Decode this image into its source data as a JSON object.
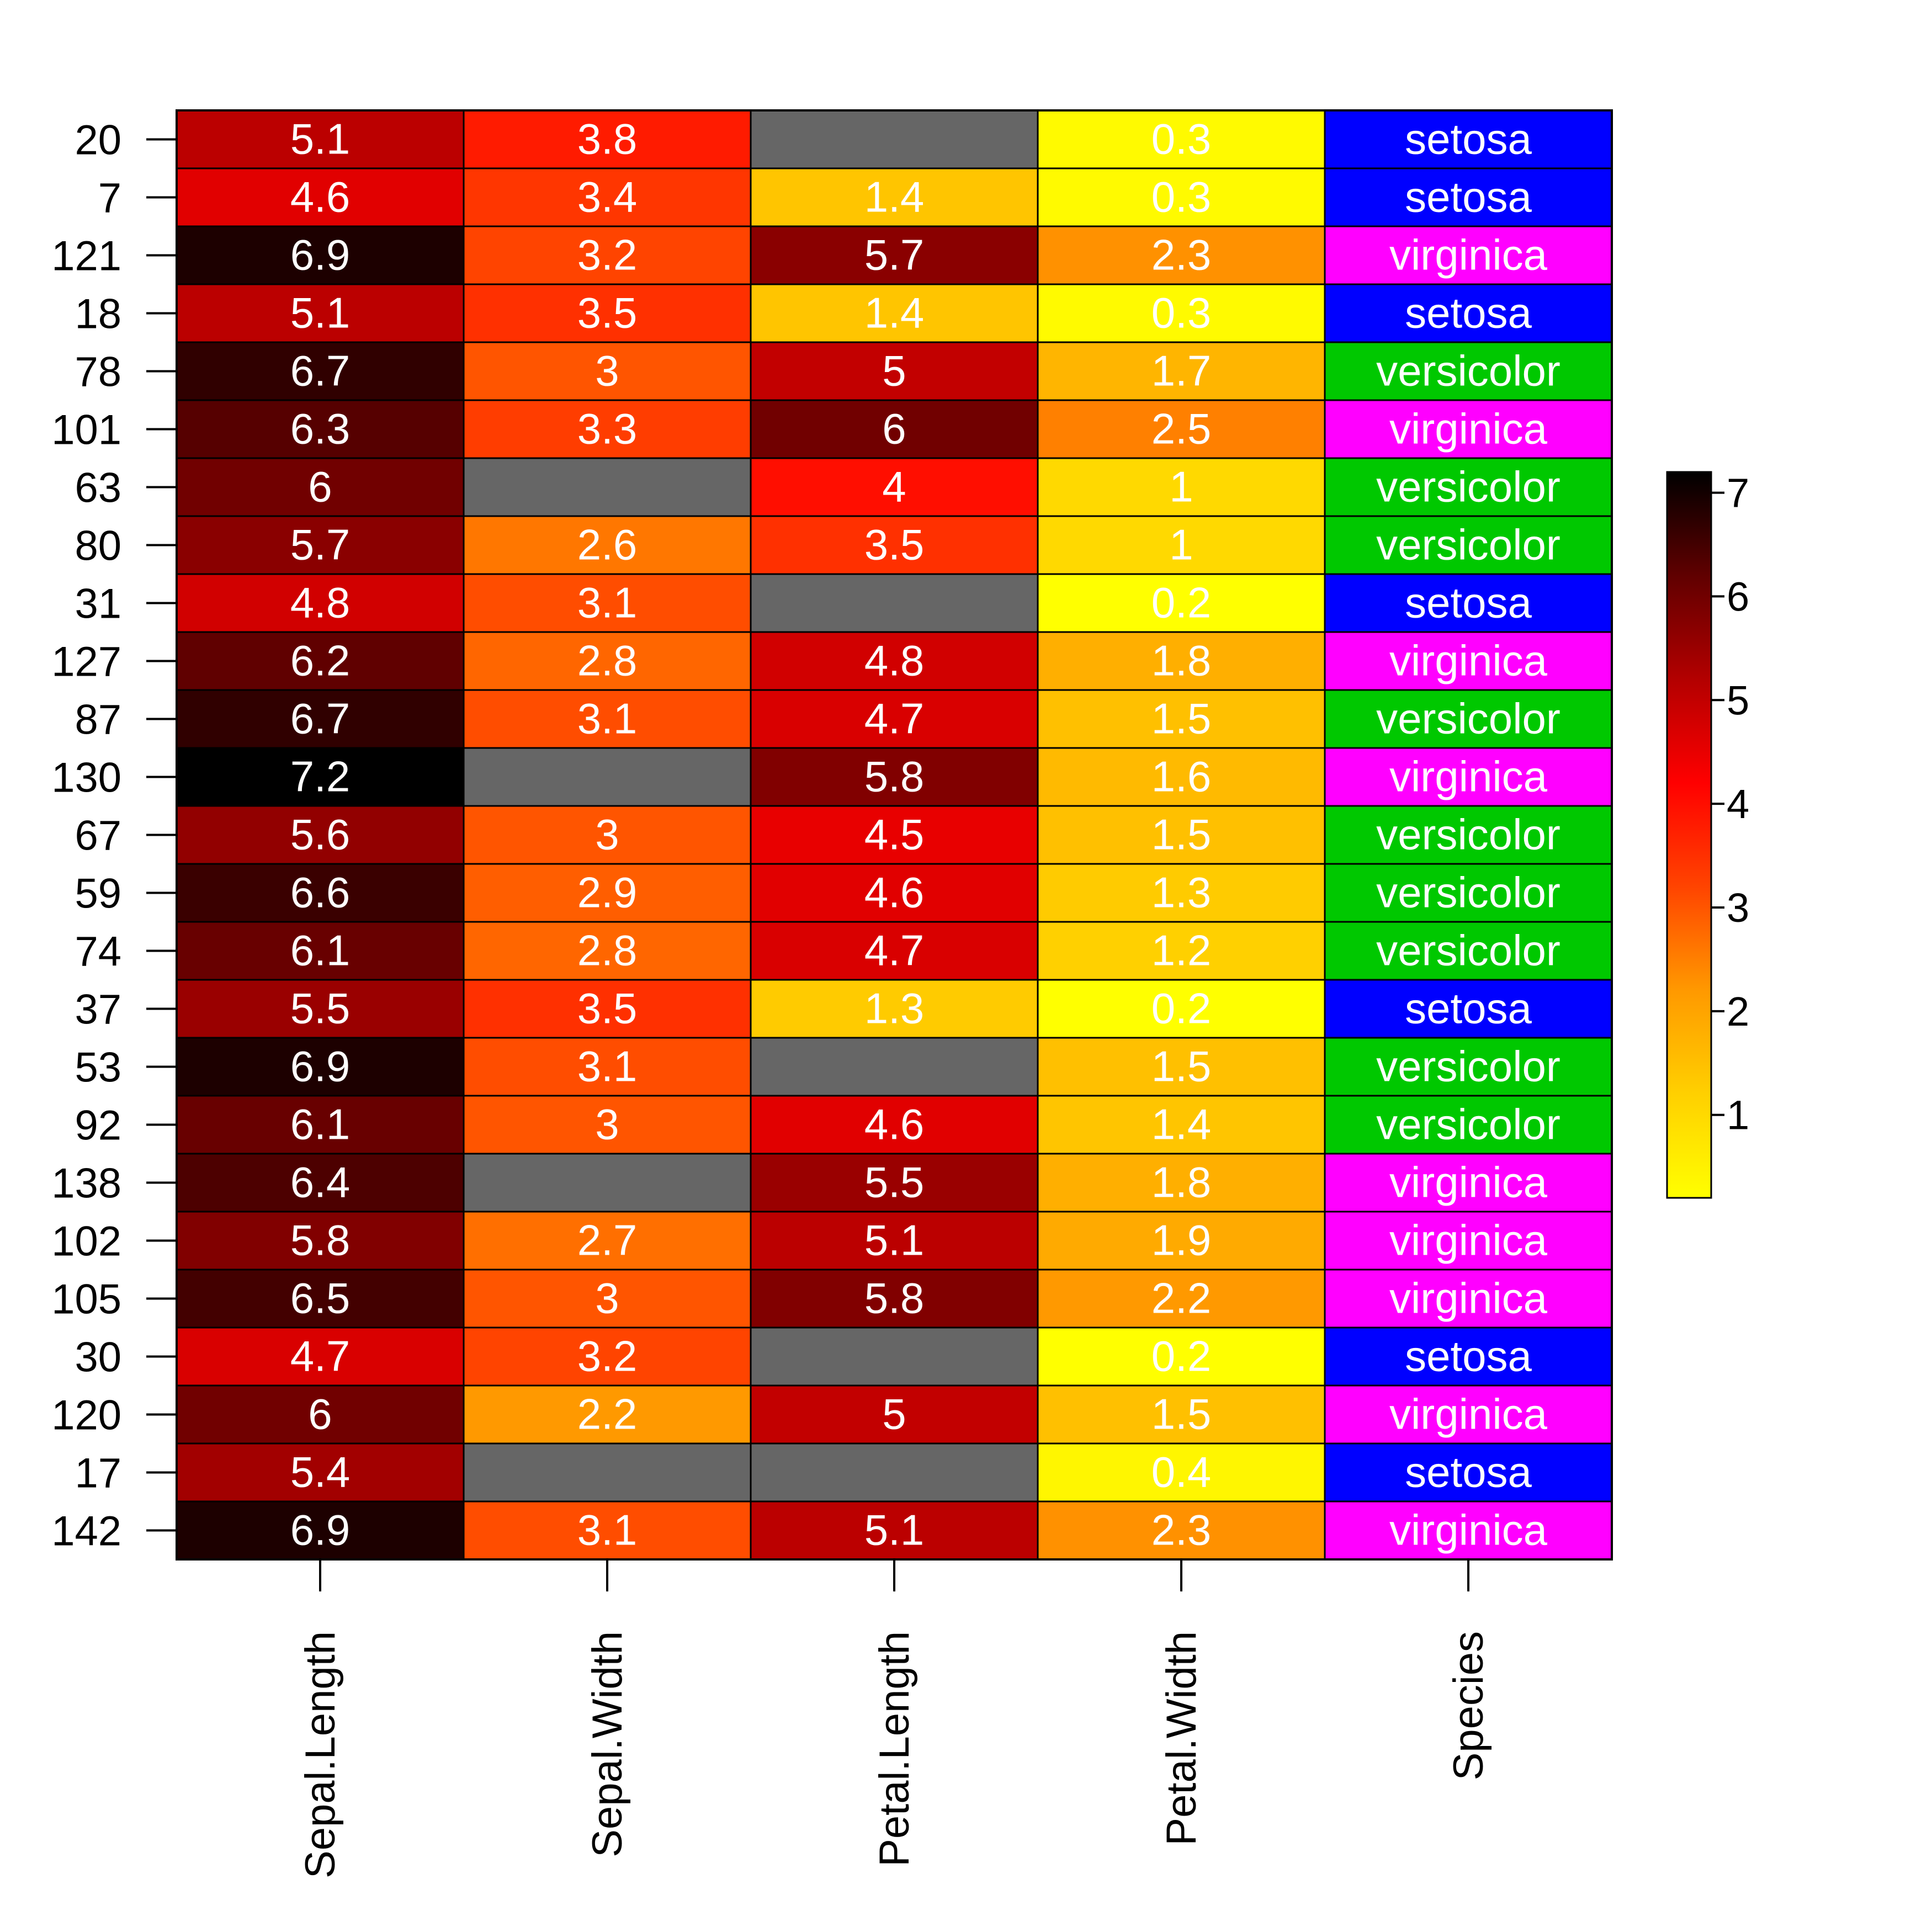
{
  "chart_data": {
    "type": "heatmap",
    "columns": [
      "Sepal.Length",
      "Sepal.Width",
      "Petal.Length",
      "Petal.Width",
      "Species"
    ],
    "rows": [
      "20",
      "7",
      "121",
      "18",
      "78",
      "101",
      "63",
      "80",
      "31",
      "127",
      "87",
      "130",
      "67",
      "59",
      "74",
      "37",
      "53",
      "92",
      "138",
      "102",
      "105",
      "30",
      "120",
      "17",
      "142"
    ],
    "values": [
      [
        5.1,
        3.8,
        null,
        0.3,
        "setosa"
      ],
      [
        4.6,
        3.4,
        1.4,
        0.3,
        "setosa"
      ],
      [
        6.9,
        3.2,
        5.7,
        2.3,
        "virginica"
      ],
      [
        5.1,
        3.5,
        1.4,
        0.3,
        "setosa"
      ],
      [
        6.7,
        3,
        5,
        1.7,
        "versicolor"
      ],
      [
        6.3,
        3.3,
        6,
        2.5,
        "virginica"
      ],
      [
        6,
        null,
        4,
        1,
        "versicolor"
      ],
      [
        5.7,
        2.6,
        3.5,
        1,
        "versicolor"
      ],
      [
        4.8,
        3.1,
        null,
        0.2,
        "setosa"
      ],
      [
        6.2,
        2.8,
        4.8,
        1.8,
        "virginica"
      ],
      [
        6.7,
        3.1,
        4.7,
        1.5,
        "versicolor"
      ],
      [
        7.2,
        null,
        5.8,
        1.6,
        "virginica"
      ],
      [
        5.6,
        3,
        4.5,
        1.5,
        "versicolor"
      ],
      [
        6.6,
        2.9,
        4.6,
        1.3,
        "versicolor"
      ],
      [
        6.1,
        2.8,
        4.7,
        1.2,
        "versicolor"
      ],
      [
        5.5,
        3.5,
        1.3,
        0.2,
        "setosa"
      ],
      [
        6.9,
        3.1,
        null,
        1.5,
        "versicolor"
      ],
      [
        6.1,
        3,
        4.6,
        1.4,
        "versicolor"
      ],
      [
        6.4,
        null,
        5.5,
        1.8,
        "virginica"
      ],
      [
        5.8,
        2.7,
        5.1,
        1.9,
        "virginica"
      ],
      [
        6.5,
        3,
        5.8,
        2.2,
        "virginica"
      ],
      [
        4.7,
        3.2,
        null,
        0.2,
        "setosa"
      ],
      [
        6,
        2.2,
        5,
        1.5,
        "virginica"
      ],
      [
        5.4,
        null,
        null,
        0.4,
        "setosa"
      ],
      [
        6.9,
        3.1,
        5.1,
        2.3,
        "virginica"
      ]
    ],
    "color_scale": {
      "min": 0.2,
      "max": 7.2,
      "stops": [
        "#ffff00",
        "#ffd000",
        "#ff9900",
        "#ff4400",
        "#ff0000",
        "#b30000",
        "#600000",
        "#000000"
      ],
      "missing_color": "#666666"
    },
    "species_colors": {
      "setosa": "#0000ff",
      "versicolor": "#00c800",
      "virginica": "#ff00ff"
    },
    "legend": {
      "ticks": [
        1,
        2,
        3,
        4,
        5,
        6,
        7
      ],
      "placement": "right"
    },
    "text_color": "#ffffff",
    "axis_color": "#000000"
  }
}
